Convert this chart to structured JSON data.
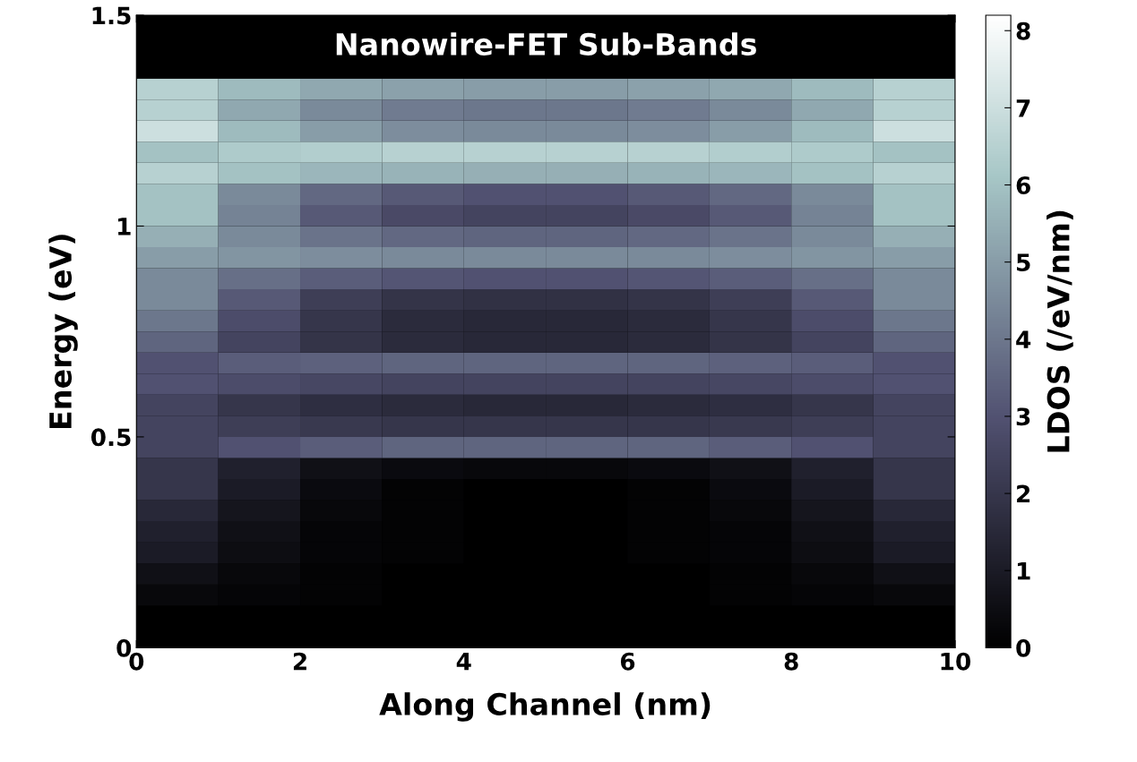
{
  "chart_data": {
    "type": "heatmap",
    "title": "Nanowire-FET Sub-Bands",
    "xlabel": "Along Channel (nm)",
    "ylabel": "Energy (eV)",
    "clabel": "LDOS (/eV/nm)",
    "x": [
      0.5,
      1.5,
      2.5,
      3.5,
      4.5,
      5.5,
      6.5,
      7.5,
      8.5,
      9.5
    ],
    "y": [
      0.025,
      0.075,
      0.125,
      0.175,
      0.225,
      0.275,
      0.325,
      0.375,
      0.425,
      0.475,
      0.525,
      0.575,
      0.625,
      0.675,
      0.725,
      0.775,
      0.825,
      0.875,
      0.925,
      0.975,
      1.025,
      1.075,
      1.125,
      1.175,
      1.225,
      1.275,
      1.325
    ],
    "cells": [
      [
        0,
        0,
        0,
        0,
        0,
        0,
        0,
        0,
        0,
        0
      ],
      [
        0,
        0,
        0,
        0,
        0,
        0,
        0,
        0,
        0,
        0
      ],
      [
        0.3,
        0.2,
        0.1,
        0,
        0,
        0,
        0,
        0.1,
        0.2,
        0.3
      ],
      [
        0.6,
        0.3,
        0.1,
        0,
        0,
        0,
        0,
        0.1,
        0.3,
        0.6
      ],
      [
        1,
        0.5,
        0.2,
        0.1,
        0,
        0,
        0.1,
        0.2,
        0.5,
        1
      ],
      [
        1.2,
        0.6,
        0.2,
        0.1,
        0,
        0,
        0.1,
        0.2,
        0.6,
        1.2
      ],
      [
        1.5,
        0.8,
        0.3,
        0.1,
        0,
        0,
        0.1,
        0.3,
        0.8,
        1.5
      ],
      [
        2,
        1,
        0.4,
        0.1,
        0,
        0,
        0.1,
        0.4,
        1,
        2
      ],
      [
        2,
        1.2,
        0.6,
        0.4,
        0.3,
        0.3,
        0.4,
        0.6,
        1.2,
        2
      ],
      [
        2.5,
        3,
        3.3,
        3.5,
        3.5,
        3.5,
        3.5,
        3.3,
        3,
        2.5
      ],
      [
        2.5,
        2.3,
        2.1,
        2,
        2,
        2,
        2,
        2.1,
        2.3,
        2.5
      ],
      [
        2.5,
        2,
        1.7,
        1.6,
        1.5,
        1.5,
        1.6,
        1.7,
        2,
        2.5
      ],
      [
        3,
        2.8,
        2.6,
        2.5,
        2.5,
        2.5,
        2.5,
        2.6,
        2.8,
        3
      ],
      [
        3,
        3.3,
        3.4,
        3.5,
        3.5,
        3.5,
        3.5,
        3.4,
        3.3,
        3
      ],
      [
        3.5,
        2.5,
        1.9,
        1.6,
        1.5,
        1.5,
        1.6,
        1.9,
        2.5,
        3.5
      ],
      [
        4,
        2.8,
        2,
        1.6,
        1.5,
        1.5,
        1.6,
        2,
        2.8,
        4
      ],
      [
        4.5,
        3.2,
        2.3,
        1.9,
        1.8,
        1.8,
        1.9,
        2.3,
        3.2,
        4.5
      ],
      [
        4.5,
        3.8,
        3.3,
        3.1,
        3,
        3,
        3.1,
        3.3,
        3.8,
        4.5
      ],
      [
        5,
        4.8,
        4.6,
        4.5,
        4.5,
        4.5,
        4.5,
        4.6,
        4.8,
        5
      ],
      [
        5.5,
        4.5,
        3.9,
        3.6,
        3.5,
        3.5,
        3.6,
        3.9,
        4.5,
        5.5
      ],
      [
        6,
        4.3,
        3.2,
        2.7,
        2.5,
        2.5,
        2.7,
        3.2,
        4.3,
        6
      ],
      [
        6,
        4.5,
        3.6,
        3.2,
        3,
        3,
        3.2,
        3.6,
        4.5,
        6
      ],
      [
        6.5,
        6,
        5.7,
        5.6,
        5.5,
        5.5,
        5.6,
        5.7,
        6,
        6.5
      ],
      [
        6,
        6.3,
        6.4,
        6.5,
        6.5,
        6.5,
        6.5,
        6.4,
        6.3,
        6
      ],
      [
        7,
        5.8,
        5,
        4.6,
        4.5,
        4.5,
        4.6,
        5,
        5.8,
        7
      ],
      [
        6.5,
        5.3,
        4.5,
        4.1,
        4,
        4,
        4.1,
        4.5,
        5.3,
        6.5
      ],
      [
        6.5,
        5.8,
        5.3,
        5.1,
        5,
        5,
        5.1,
        5.3,
        5.8,
        6.5
      ]
    ],
    "clim": [
      0,
      8.2
    ],
    "cticks": [
      0,
      1,
      2,
      3,
      4,
      5,
      6,
      7,
      8
    ],
    "xlim": [
      0,
      10
    ],
    "ylim": [
      0,
      1.5
    ],
    "xticks": [
      0,
      2,
      4,
      6,
      8,
      10
    ],
    "yticks": [
      0,
      0.5,
      1,
      1.5
    ]
  }
}
